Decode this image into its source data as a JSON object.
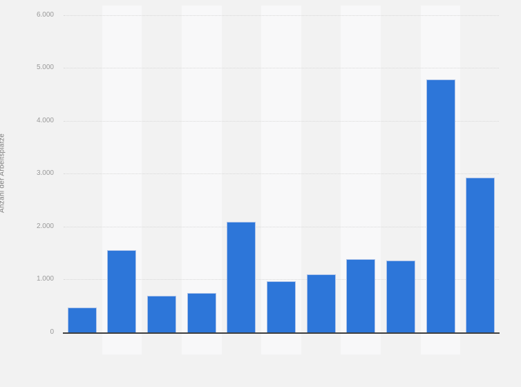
{
  "chart_data": {
    "type": "bar",
    "title": "",
    "xlabel": "",
    "ylabel": "Anzahl der Arbeitsplätze",
    "ylim": [
      0,
      6000
    ],
    "yticks": [
      0,
      1000,
      2000,
      3000,
      4000,
      5000,
      6000
    ],
    "ytick_labels": [
      "0",
      "1.000",
      "2.000",
      "3.000",
      "4.000",
      "5.000",
      "6.000"
    ],
    "values": [
      465,
      1550,
      690,
      740,
      2090,
      965,
      1100,
      1390,
      1360,
      4775,
      2920
    ],
    "legend": "none",
    "grid": "horizontal-dotted",
    "bar_count": 11
  },
  "colors": {
    "page_background": "#f2f2f2",
    "column_stripe": "#f8f8f9",
    "bar_fill": "#2d76d9",
    "bar_border": "#aec4ea",
    "gridline": "#d8d8d8",
    "tick_label": "#999999",
    "axis_title": "#7d7d7d",
    "baseline": "#3f3f3f"
  }
}
